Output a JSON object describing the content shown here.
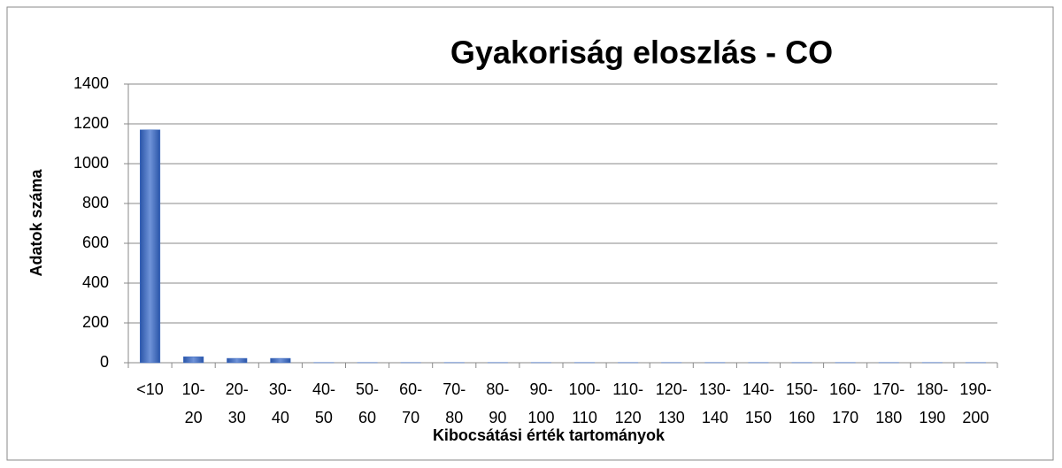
{
  "chart_data": {
    "type": "bar",
    "title": "Gyakoriság eloszlás - CO",
    "xlabel": "Kibocsátási  érték tartományok",
    "ylabel": "Adatok száma",
    "categories": [
      [
        "<10"
      ],
      [
        "10-",
        "20"
      ],
      [
        "20-",
        "30"
      ],
      [
        "30-",
        "40"
      ],
      [
        "40-",
        "50"
      ],
      [
        "50-",
        "60"
      ],
      [
        "60-",
        "70"
      ],
      [
        "70-",
        "80"
      ],
      [
        "80-",
        "90"
      ],
      [
        "90-",
        "100"
      ],
      [
        "100-",
        "110"
      ],
      [
        "110-",
        "120"
      ],
      [
        "120-",
        "130"
      ],
      [
        "130-",
        "140"
      ],
      [
        "140-",
        "150"
      ],
      [
        "150-",
        "160"
      ],
      [
        "160-",
        "170"
      ],
      [
        "170-",
        "180"
      ],
      [
        "180-",
        "190"
      ],
      [
        "190-",
        "200"
      ]
    ],
    "values": [
      1170,
      30,
      22,
      22,
      1,
      1,
      1,
      1,
      1,
      1,
      1,
      1,
      1,
      1,
      1,
      1,
      1,
      1,
      1,
      1
    ],
    "color": "#3f6cc2",
    "ylim": [
      0,
      1400
    ],
    "yticks": [
      0,
      200,
      400,
      600,
      800,
      1000,
      1200,
      1400
    ],
    "grid": true
  }
}
